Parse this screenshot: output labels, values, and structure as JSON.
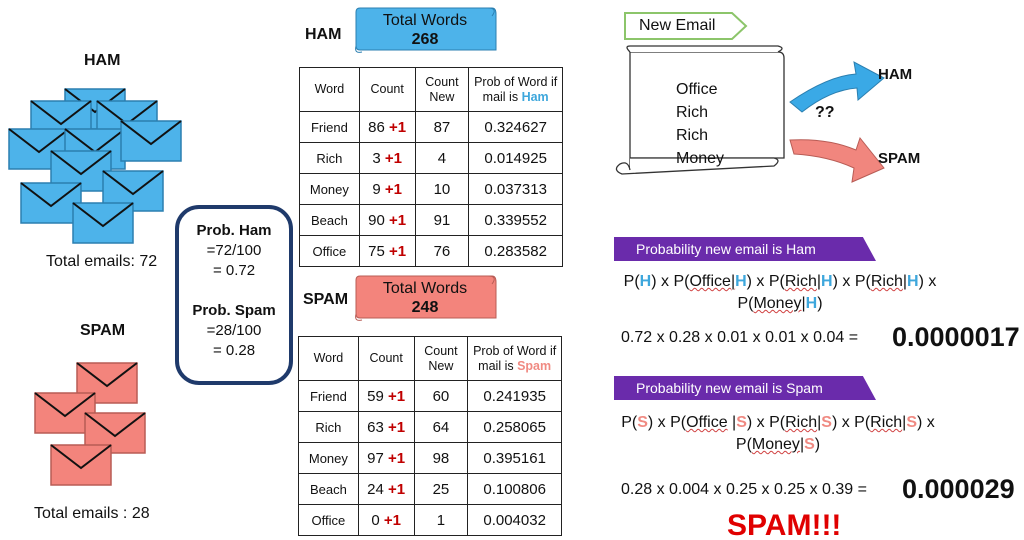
{
  "ham_group": {
    "title": "HAM",
    "total": "Total emails: 72"
  },
  "spam_group": {
    "title": "SPAM",
    "total": "Total emails : 28"
  },
  "prob_box": {
    "ham_title": "Prob. Ham",
    "ham_expr": "=72/100",
    "ham_value": "= 0.72",
    "spam_title": "Prob. Spam",
    "spam_expr": "=28/100",
    "spam_value": "= 0.28"
  },
  "ham_table": {
    "label": "HAM",
    "banner_title": "Total Words",
    "banner_value": "268",
    "headers": [
      "Word",
      "Count",
      "Count New",
      "Prob of Word if mail is "
    ],
    "header_highlight": "Ham",
    "plus": "+1",
    "rows": [
      {
        "word": "Friend",
        "count": "86",
        "count_new": "87",
        "prob": "0.324627"
      },
      {
        "word": "Rich",
        "count": "3",
        "count_new": "4",
        "prob": "0.014925"
      },
      {
        "word": "Money",
        "count": "9",
        "count_new": "10",
        "prob": "0.037313"
      },
      {
        "word": "Beach",
        "count": "90",
        "count_new": "91",
        "prob": "0.339552"
      },
      {
        "word": "Office",
        "count": "75",
        "count_new": "76",
        "prob": "0.283582"
      }
    ]
  },
  "spam_table": {
    "label": "SPAM",
    "banner_title": "Total Words",
    "banner_value": "248",
    "headers": [
      "Word",
      "Count",
      "Count New",
      "Prob of Word if mail is "
    ],
    "header_highlight": "Spam",
    "plus": "+1",
    "rows": [
      {
        "word": "Friend",
        "count": "59",
        "count_new": "60",
        "prob": "0.241935"
      },
      {
        "word": "Rich",
        "count": "63",
        "count_new": "64",
        "prob": "0.258065"
      },
      {
        "word": "Money",
        "count": "97",
        "count_new": "98",
        "prob": "0.395161"
      },
      {
        "word": "Beach",
        "count": "24",
        "count_new": "25",
        "prob": "0.100806"
      },
      {
        "word": "Office",
        "count": "0",
        "count_new": "1",
        "prob": "0.004032"
      }
    ]
  },
  "new_email": {
    "tag": "New Email",
    "words": [
      "Office",
      "Rich",
      "Rich",
      "Money"
    ],
    "arrow_ham": "HAM",
    "arrow_spam": "SPAM",
    "question": "??"
  },
  "ham_calc": {
    "bar": "Probability new email is Ham",
    "letter": "H",
    "calc": "0.72 x 0.28 x 0.01 x 0.01 x 0.04 =",
    "result": "0.0000017"
  },
  "spam_calc": {
    "bar": "Probability new email is Spam",
    "letter": "S",
    "calc": "0.28 x 0.004 x 0.25 x 0.25 x 0.39 =",
    "result": "0.000029"
  },
  "verdict": "SPAM!!!",
  "colors": {
    "ham": "#4db3ea",
    "spam": "#f3847c",
    "purple": "#6a2bab",
    "box_border": "#1f3a6b",
    "verdict": "#e00000",
    "arrow_ham": "#3aa9e6",
    "arrow_spam": "#f1867e"
  }
}
